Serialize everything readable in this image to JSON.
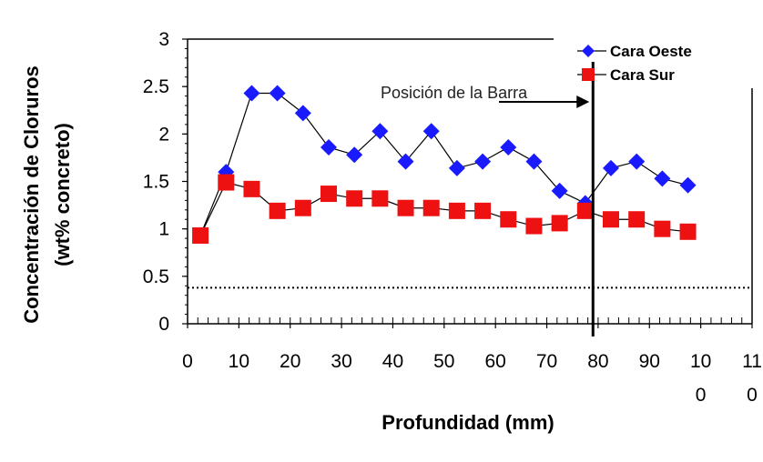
{
  "chart_data": {
    "type": "line",
    "xlabel": "Profundidad (mm)",
    "ylabel_line1": "Concentración de Cloruros",
    "ylabel_line2": "(wt% concreto)",
    "xlim": [
      0,
      110
    ],
    "ylim": [
      0,
      3
    ],
    "x_ticks": [
      0,
      10,
      20,
      30,
      40,
      50,
      60,
      70,
      80,
      90,
      100,
      110
    ],
    "x_tick_labels": [
      {
        "top": "0",
        "bottom": ""
      },
      {
        "top": "10",
        "bottom": ""
      },
      {
        "top": "20",
        "bottom": ""
      },
      {
        "top": "30",
        "bottom": ""
      },
      {
        "top": "40",
        "bottom": ""
      },
      {
        "top": "50",
        "bottom": ""
      },
      {
        "top": "60",
        "bottom": ""
      },
      {
        "top": "70",
        "bottom": ""
      },
      {
        "top": "80",
        "bottom": ""
      },
      {
        "top": "90",
        "bottom": ""
      },
      {
        "top": "10",
        "bottom": "0"
      },
      {
        "top": "11",
        "bottom": "0"
      }
    ],
    "y_ticks": [
      0,
      0.5,
      1,
      1.5,
      2,
      2.5,
      3
    ],
    "y_tick_labels": [
      "0",
      "0.5",
      "1",
      "1.5",
      "2",
      "2.5",
      "3"
    ],
    "series": [
      {
        "name": "Cara Oeste",
        "color": "#1a1aff",
        "marker": "diamond",
        "x": [
          2.5,
          7.5,
          12.5,
          17.5,
          22.5,
          27.5,
          32.5,
          37.5,
          42.5,
          47.5,
          52.5,
          57.5,
          62.5,
          67.5,
          72.5,
          77.5,
          82.5,
          87.5,
          92.5,
          97.5
        ],
        "y": [
          0.93,
          1.6,
          2.43,
          2.43,
          2.22,
          1.86,
          1.78,
          2.03,
          1.71,
          2.03,
          1.64,
          1.71,
          1.86,
          1.71,
          1.4,
          1.27,
          1.64,
          1.71,
          1.53,
          1.46
        ]
      },
      {
        "name": "Cara Sur",
        "color": "#ee1111",
        "marker": "square",
        "x": [
          2.5,
          7.5,
          12.5,
          17.5,
          22.5,
          27.5,
          32.5,
          37.5,
          42.5,
          47.5,
          52.5,
          57.5,
          62.5,
          67.5,
          72.5,
          77.5,
          82.5,
          87.5,
          92.5,
          97.5
        ],
        "y": [
          0.93,
          1.49,
          1.42,
          1.19,
          1.22,
          1.37,
          1.32,
          1.32,
          1.22,
          1.22,
          1.19,
          1.19,
          1.1,
          1.03,
          1.06,
          1.19,
          1.1,
          1.1,
          1.0,
          0.97
        ]
      }
    ],
    "threshold": {
      "y": 0.38,
      "style": "dotted"
    },
    "bar_position": {
      "x": 79,
      "label": "Posición de la Barra"
    },
    "legend_position": "top-right",
    "grid": false
  }
}
